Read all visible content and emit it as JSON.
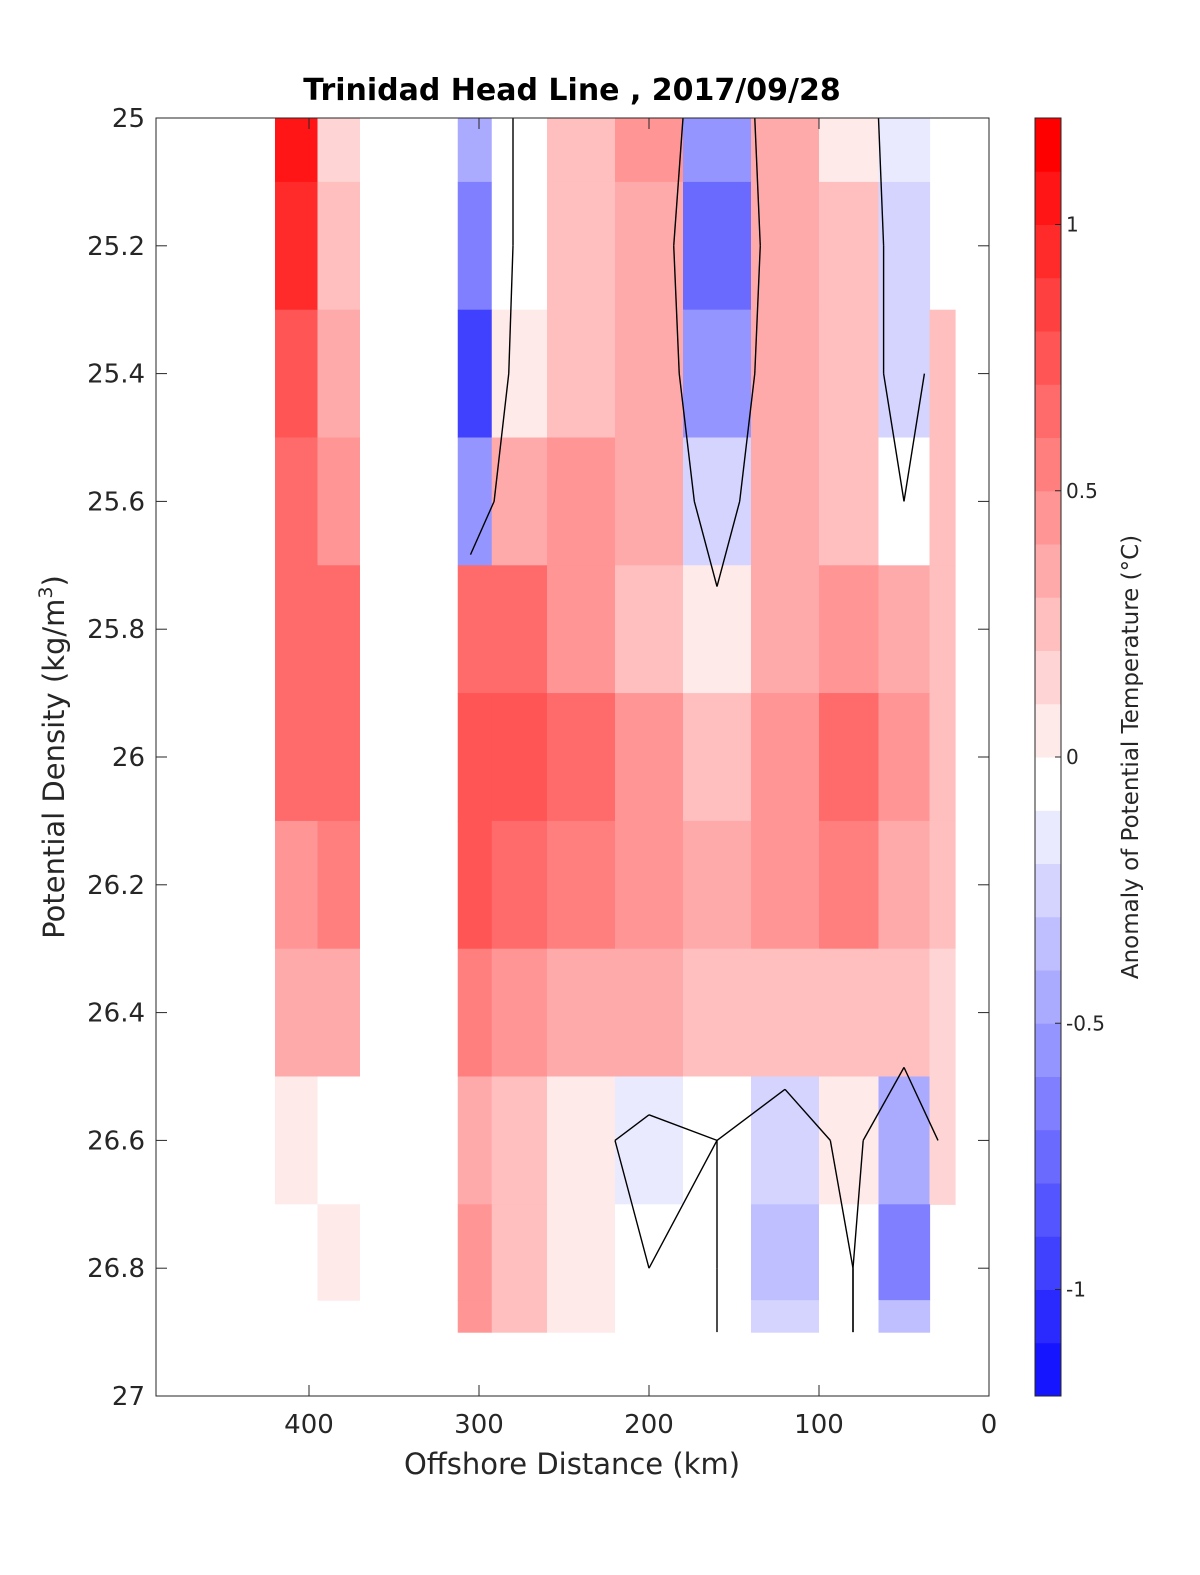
{
  "chart_data": {
    "type": "heatmap",
    "title": "Trinidad Head Line , 2017/09/28",
    "xlabel": "Offshore Distance (km)",
    "ylabel": "Potential Density (kg/m",
    "ylabel_sup": "3",
    "ylabel_close": ")",
    "xlim": [
      490,
      0
    ],
    "ylim": [
      25,
      27
    ],
    "x_reversed": true,
    "y_reversed": true,
    "xticks": [
      "400",
      "300",
      "200",
      "100",
      "0"
    ],
    "yticks": [
      "25",
      "25.2",
      "25.4",
      "25.6",
      "25.8",
      "26",
      "26.2",
      "26.4",
      "26.6",
      "26.8",
      "27"
    ],
    "colorbar": {
      "label": "Anomaly of Potential Temperature (°C)",
      "range": [
        -1.2,
        1.2
      ],
      "ticks": [
        "1",
        "0.5",
        "0",
        "-0.5",
        "-1"
      ],
      "step": 0.1
    },
    "stations_km": [
      420,
      370,
      320,
      305,
      280,
      240,
      200,
      160,
      120,
      80,
      50,
      20
    ],
    "densities": [
      25.0,
      25.2,
      25.4,
      25.6,
      25.8,
      26.0,
      26.2,
      26.4,
      26.6,
      26.8,
      26.9
    ],
    "anomaly_grid": [
      [
        1.1,
        0.2,
        null,
        -0.4,
        0.0,
        0.3,
        0.5,
        -0.5,
        0.4,
        0.1,
        -0.1,
        null
      ],
      [
        1.0,
        0.3,
        null,
        -0.6,
        0.0,
        0.3,
        0.4,
        -0.7,
        0.4,
        0.3,
        -0.2,
        null
      ],
      [
        0.8,
        0.4,
        null,
        -0.9,
        0.1,
        0.3,
        0.4,
        -0.5,
        0.4,
        0.3,
        -0.2,
        0.3
      ],
      [
        0.7,
        0.5,
        null,
        -0.5,
        0.4,
        0.5,
        0.4,
        -0.2,
        0.4,
        0.3,
        0.0,
        0.3
      ],
      [
        0.7,
        0.7,
        null,
        0.7,
        0.7,
        0.5,
        0.3,
        0.1,
        0.4,
        0.5,
        0.4,
        0.3
      ],
      [
        0.7,
        0.7,
        null,
        0.8,
        0.8,
        0.7,
        0.5,
        0.3,
        0.5,
        0.7,
        0.5,
        0.3
      ],
      [
        0.5,
        0.6,
        null,
        0.8,
        0.7,
        0.6,
        0.5,
        0.4,
        0.5,
        0.6,
        0.4,
        0.3
      ],
      [
        0.4,
        0.4,
        null,
        0.6,
        0.5,
        0.4,
        0.4,
        0.3,
        0.3,
        0.3,
        0.3,
        0.2
      ],
      [
        0.1,
        0.0,
        null,
        0.4,
        0.3,
        0.1,
        -0.1,
        0.0,
        -0.2,
        0.1,
        -0.4,
        0.2
      ],
      [
        0.0,
        0.1,
        null,
        0.5,
        0.3,
        0.1,
        0.0,
        0.0,
        -0.3,
        0.0,
        -0.6,
        null
      ],
      [
        0.0,
        null,
        null,
        0.5,
        0.3,
        0.1,
        0.0,
        0.0,
        -0.2,
        0.0,
        -0.3,
        null
      ]
    ],
    "blank_band_km": [
      370,
      320
    ],
    "grid": false
  }
}
